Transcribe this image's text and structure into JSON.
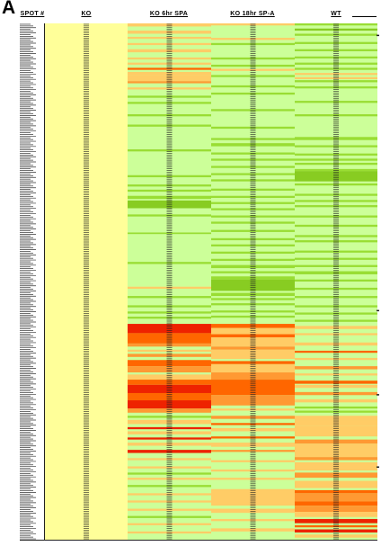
{
  "panel_label": "A",
  "chart_data": {
    "type": "heatmap",
    "columns": [
      "SPOT #",
      "KO",
      "KO 6hr SPA",
      "KO 18hr SP-A",
      "WT"
    ],
    "colors": {
      "baseline_yellow": "#ffff99",
      "light_green": "#ccff99",
      "green": "#99dd33",
      "bright_green": "#88cc22",
      "light_orange": "#ffcc66",
      "orange": "#ff9933",
      "red_orange": "#ff6600",
      "red": "#ee2200"
    },
    "column_background": {
      "KO": "baseline_yellow",
      "KO 6hr SPA": "light_green",
      "KO 18hr SP-A": "light_green",
      "WT": "light_green"
    },
    "bands_note": "row bands given as [start fraction, end fraction, color] of the heatmap height",
    "bands": {
      "KO 6hr SPA": [
        [
          0.0,
          0.006,
          "light_orange"
        ],
        [
          0.014,
          0.02,
          "light_orange"
        ],
        [
          0.026,
          0.03,
          "light_orange"
        ],
        [
          0.038,
          0.042,
          "light_orange"
        ],
        [
          0.05,
          0.056,
          "light_orange"
        ],
        [
          0.066,
          0.07,
          "light_orange"
        ],
        [
          0.076,
          0.08,
          "light_orange"
        ],
        [
          0.086,
          0.09,
          "red_orange"
        ],
        [
          0.094,
          0.1,
          "light_orange"
        ],
        [
          0.1,
          0.112,
          "light_orange"
        ],
        [
          0.112,
          0.116,
          "orange"
        ],
        [
          0.124,
          0.128,
          "light_orange"
        ],
        [
          0.14,
          0.144,
          "green"
        ],
        [
          0.152,
          0.156,
          "green"
        ],
        [
          0.176,
          0.18,
          "green"
        ],
        [
          0.196,
          0.2,
          "green"
        ],
        [
          0.244,
          0.248,
          "green"
        ],
        [
          0.294,
          0.298,
          "green"
        ],
        [
          0.312,
          0.316,
          "green"
        ],
        [
          0.322,
          0.326,
          "green"
        ],
        [
          0.334,
          0.34,
          "green"
        ],
        [
          0.343,
          0.358,
          "bright_green"
        ],
        [
          0.37,
          0.374,
          "green"
        ],
        [
          0.405,
          0.408,
          "green"
        ],
        [
          0.462,
          0.466,
          "green"
        ],
        [
          0.51,
          0.514,
          "light_orange"
        ],
        [
          0.528,
          0.532,
          "green"
        ],
        [
          0.546,
          0.55,
          "green"
        ],
        [
          0.558,
          0.562,
          "green"
        ],
        [
          0.568,
          0.572,
          "green"
        ],
        [
          0.582,
          0.6,
          "red"
        ],
        [
          0.6,
          0.62,
          "red_orange"
        ],
        [
          0.62,
          0.626,
          "orange"
        ],
        [
          0.632,
          0.636,
          "light_orange"
        ],
        [
          0.64,
          0.646,
          "orange"
        ],
        [
          0.652,
          0.664,
          "red_orange"
        ],
        [
          0.664,
          0.676,
          "orange"
        ],
        [
          0.68,
          0.69,
          "light_orange"
        ],
        [
          0.69,
          0.7,
          "red_orange"
        ],
        [
          0.7,
          0.716,
          "red"
        ],
        [
          0.716,
          0.73,
          "red_orange"
        ],
        [
          0.73,
          0.746,
          "red"
        ],
        [
          0.746,
          0.754,
          "orange"
        ],
        [
          0.76,
          0.764,
          "green"
        ],
        [
          0.768,
          0.776,
          "light_orange"
        ],
        [
          0.782,
          0.786,
          "red"
        ],
        [
          0.79,
          0.796,
          "light_orange"
        ],
        [
          0.802,
          0.806,
          "red"
        ],
        [
          0.812,
          0.818,
          "light_orange"
        ],
        [
          0.826,
          0.832,
          "red"
        ],
        [
          0.842,
          0.846,
          "light_orange"
        ],
        [
          0.858,
          0.862,
          "light_orange"
        ],
        [
          0.87,
          0.874,
          "green"
        ],
        [
          0.88,
          0.884,
          "light_orange"
        ],
        [
          0.894,
          0.898,
          "green"
        ],
        [
          0.91,
          0.914,
          "light_orange"
        ],
        [
          0.924,
          0.928,
          "light_orange"
        ],
        [
          0.94,
          0.944,
          "light_orange"
        ],
        [
          0.954,
          0.958,
          "green"
        ],
        [
          0.968,
          0.972,
          "light_orange"
        ],
        [
          0.984,
          0.988,
          "light_orange"
        ]
      ],
      "KO 18hr SP-A": [
        [
          0.0,
          0.004,
          "light_orange"
        ],
        [
          0.028,
          0.032,
          "light_orange"
        ],
        [
          0.038,
          0.042,
          "green"
        ],
        [
          0.066,
          0.07,
          "green"
        ],
        [
          0.08,
          0.084,
          "green"
        ],
        [
          0.088,
          0.092,
          "light_orange"
        ],
        [
          0.1,
          0.104,
          "green"
        ],
        [
          0.12,
          0.124,
          "green"
        ],
        [
          0.134,
          0.138,
          "green"
        ],
        [
          0.166,
          0.17,
          "green"
        ],
        [
          0.2,
          0.204,
          "green"
        ],
        [
          0.222,
          0.226,
          "green"
        ],
        [
          0.232,
          0.238,
          "green"
        ],
        [
          0.25,
          0.254,
          "green"
        ],
        [
          0.262,
          0.266,
          "green"
        ],
        [
          0.276,
          0.28,
          "green"
        ],
        [
          0.29,
          0.294,
          "green"
        ],
        [
          0.302,
          0.306,
          "green"
        ],
        [
          0.32,
          0.324,
          "green"
        ],
        [
          0.334,
          0.338,
          "green"
        ],
        [
          0.346,
          0.35,
          "green"
        ],
        [
          0.358,
          0.362,
          "green"
        ],
        [
          0.372,
          0.376,
          "green"
        ],
        [
          0.384,
          0.388,
          "green"
        ],
        [
          0.4,
          0.404,
          "green"
        ],
        [
          0.416,
          0.42,
          "green"
        ],
        [
          0.428,
          0.432,
          "green"
        ],
        [
          0.442,
          0.446,
          "green"
        ],
        [
          0.456,
          0.46,
          "green"
        ],
        [
          0.468,
          0.474,
          "green"
        ],
        [
          0.48,
          0.484,
          "green"
        ],
        [
          0.49,
          0.496,
          "green"
        ],
        [
          0.496,
          0.518,
          "bright_green"
        ],
        [
          0.522,
          0.528,
          "green"
        ],
        [
          0.532,
          0.536,
          "green"
        ],
        [
          0.542,
          0.546,
          "green"
        ],
        [
          0.556,
          0.56,
          "green"
        ],
        [
          0.566,
          0.57,
          "green"
        ],
        [
          0.582,
          0.59,
          "red_orange"
        ],
        [
          0.59,
          0.602,
          "light_orange"
        ],
        [
          0.602,
          0.608,
          "red_orange"
        ],
        [
          0.608,
          0.626,
          "light_orange"
        ],
        [
          0.626,
          0.632,
          "orange"
        ],
        [
          0.632,
          0.65,
          "light_orange"
        ],
        [
          0.654,
          0.66,
          "red_orange"
        ],
        [
          0.66,
          0.676,
          "light_orange"
        ],
        [
          0.676,
          0.69,
          "orange"
        ],
        [
          0.69,
          0.72,
          "red_orange"
        ],
        [
          0.72,
          0.74,
          "orange"
        ],
        [
          0.746,
          0.75,
          "light_orange"
        ],
        [
          0.76,
          0.766,
          "orange"
        ],
        [
          0.774,
          0.778,
          "red_orange"
        ],
        [
          0.784,
          0.79,
          "light_orange"
        ],
        [
          0.8,
          0.804,
          "red_orange"
        ],
        [
          0.812,
          0.82,
          "light_orange"
        ],
        [
          0.826,
          0.83,
          "orange"
        ],
        [
          0.846,
          0.85,
          "light_orange"
        ],
        [
          0.864,
          0.868,
          "light_orange"
        ],
        [
          0.88,
          0.884,
          "light_orange"
        ],
        [
          0.902,
          0.934,
          "light_orange"
        ],
        [
          0.94,
          0.948,
          "light_orange"
        ],
        [
          0.96,
          0.964,
          "light_orange"
        ],
        [
          0.978,
          0.984,
          "light_orange"
        ]
      ],
      "WT": [
        [
          0.0,
          0.004,
          "green"
        ],
        [
          0.01,
          0.014,
          "bright_green"
        ],
        [
          0.02,
          0.024,
          "green"
        ],
        [
          0.036,
          0.04,
          "green"
        ],
        [
          0.05,
          0.054,
          "green"
        ],
        [
          0.064,
          0.068,
          "green"
        ],
        [
          0.076,
          0.08,
          "green"
        ],
        [
          0.086,
          0.09,
          "green"
        ],
        [
          0.096,
          0.1,
          "light_orange"
        ],
        [
          0.104,
          0.108,
          "light_orange"
        ],
        [
          0.11,
          0.114,
          "green"
        ],
        [
          0.122,
          0.126,
          "green"
        ],
        [
          0.15,
          0.154,
          "green"
        ],
        [
          0.176,
          0.18,
          "green"
        ],
        [
          0.22,
          0.226,
          "green"
        ],
        [
          0.236,
          0.24,
          "green"
        ],
        [
          0.252,
          0.256,
          "green"
        ],
        [
          0.262,
          0.266,
          "green"
        ],
        [
          0.27,
          0.274,
          "green"
        ],
        [
          0.282,
          0.286,
          "green"
        ],
        [
          0.286,
          0.306,
          "bright_green"
        ],
        [
          0.31,
          0.314,
          "green"
        ],
        [
          0.33,
          0.334,
          "green"
        ],
        [
          0.342,
          0.346,
          "green"
        ],
        [
          0.352,
          0.356,
          "green"
        ],
        [
          0.372,
          0.376,
          "green"
        ],
        [
          0.39,
          0.394,
          "green"
        ],
        [
          0.41,
          0.414,
          "green"
        ],
        [
          0.42,
          0.424,
          "green"
        ],
        [
          0.44,
          0.444,
          "green"
        ],
        [
          0.454,
          0.458,
          "green"
        ],
        [
          0.468,
          0.472,
          "green"
        ],
        [
          0.48,
          0.486,
          "green"
        ],
        [
          0.496,
          0.5,
          "green"
        ],
        [
          0.512,
          0.516,
          "green"
        ],
        [
          0.528,
          0.532,
          "green"
        ],
        [
          0.546,
          0.55,
          "green"
        ],
        [
          0.56,
          0.564,
          "green"
        ],
        [
          0.574,
          0.578,
          "green"
        ],
        [
          0.586,
          0.592,
          "light_orange"
        ],
        [
          0.6,
          0.604,
          "light_orange"
        ],
        [
          0.618,
          0.624,
          "light_orange"
        ],
        [
          0.634,
          0.638,
          "red_orange"
        ],
        [
          0.648,
          0.652,
          "light_orange"
        ],
        [
          0.664,
          0.67,
          "orange"
        ],
        [
          0.678,
          0.682,
          "light_orange"
        ],
        [
          0.692,
          0.698,
          "red_orange"
        ],
        [
          0.7,
          0.706,
          "light_orange"
        ],
        [
          0.714,
          0.72,
          "orange"
        ],
        [
          0.728,
          0.734,
          "light_orange"
        ],
        [
          0.742,
          0.746,
          "green"
        ],
        [
          0.75,
          0.754,
          "green"
        ],
        [
          0.76,
          0.77,
          "light_orange"
        ],
        [
          0.77,
          0.78,
          "light_orange"
        ],
        [
          0.78,
          0.8,
          "light_orange"
        ],
        [
          0.806,
          0.814,
          "orange"
        ],
        [
          0.814,
          0.84,
          "light_orange"
        ],
        [
          0.84,
          0.846,
          "orange"
        ],
        [
          0.85,
          0.866,
          "light_orange"
        ],
        [
          0.87,
          0.88,
          "orange"
        ],
        [
          0.886,
          0.9,
          "light_orange"
        ],
        [
          0.904,
          0.91,
          "red_orange"
        ],
        [
          0.91,
          0.926,
          "orange"
        ],
        [
          0.926,
          0.934,
          "red_orange"
        ],
        [
          0.934,
          0.946,
          "orange"
        ],
        [
          0.946,
          0.956,
          "light_orange"
        ],
        [
          0.96,
          0.968,
          "red"
        ],
        [
          0.972,
          0.976,
          "red_orange"
        ],
        [
          0.98,
          0.986,
          "red"
        ],
        [
          0.99,
          0.996,
          "light_orange"
        ]
      ]
    },
    "row_count": 300,
    "grid": false,
    "legend": "none"
  }
}
